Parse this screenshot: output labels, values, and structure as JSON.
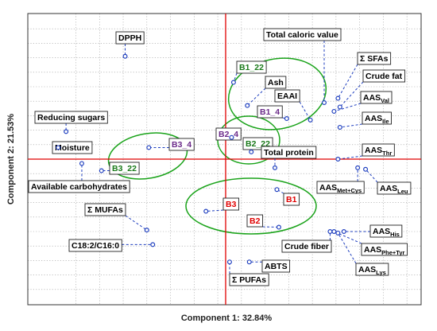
{
  "chart_data": {
    "type": "scatter",
    "title": "",
    "xlabel": "Component 1: 32.84%",
    "ylabel": "Component 2: 21.53%",
    "xlim": [
      -1.0,
      1.0
    ],
    "ylim": [
      -1.0,
      1.0
    ],
    "grid": true,
    "colors": {
      "points": "#1f3fbf",
      "axes_lines": "#e00000",
      "ellipses": "#1aa31a",
      "label_text": "#000000",
      "label_purple": "#6b2a8a",
      "label_green": "#1a7a1a",
      "label_red": "#e00000"
    },
    "points": [
      {
        "label": "DPPH",
        "x": -0.51,
        "y": 0.71,
        "color": "black"
      },
      {
        "label": "B1_22",
        "x": 0.04,
        "y": 0.53,
        "color": "green"
      },
      {
        "label": "Total caloric value",
        "x": 0.5,
        "y": 0.39,
        "color": "black"
      },
      {
        "label": "Σ SFAs",
        "x": 0.57,
        "y": 0.42,
        "color": "black"
      },
      {
        "label": "Ash",
        "x": 0.11,
        "y": 0.37,
        "color": "black"
      },
      {
        "label": "Crude fat",
        "x": 0.58,
        "y": 0.36,
        "color": "black"
      },
      {
        "label": "EAAI",
        "x": 0.43,
        "y": 0.27,
        "color": "black"
      },
      {
        "label": "AAS",
        "sub": "Val",
        "x": 0.55,
        "y": 0.33,
        "color": "black"
      },
      {
        "label": "B1_4",
        "x": 0.31,
        "y": 0.28,
        "color": "purple"
      },
      {
        "label": "AAS",
        "sub": "Ile",
        "x": 0.58,
        "y": 0.22,
        "color": "black"
      },
      {
        "label": "Reducing sugars",
        "x": -0.81,
        "y": 0.19,
        "color": "black"
      },
      {
        "label": "Moisture",
        "x": -0.85,
        "y": 0.08,
        "color": "black"
      },
      {
        "label": "B3_4",
        "x": -0.39,
        "y": 0.08,
        "color": "purple"
      },
      {
        "label": "B2_4",
        "x": 0.03,
        "y": 0.15,
        "color": "purple"
      },
      {
        "label": "B2_22",
        "x": 0.13,
        "y": 0.05,
        "color": "green"
      },
      {
        "label": "Total protein",
        "x": 0.25,
        "y": -0.06,
        "color": "black"
      },
      {
        "label": "AAS",
        "sub": "Thr",
        "x": 0.57,
        "y": 0.0,
        "color": "black"
      },
      {
        "label": "Available carbohydrates",
        "x": -0.73,
        "y": -0.03,
        "color": "black"
      },
      {
        "label": "B3_22",
        "x": -0.63,
        "y": -0.08,
        "color": "green"
      },
      {
        "label": "AAS",
        "sub": "Met+Cys",
        "x": 0.67,
        "y": -0.06,
        "color": "black"
      },
      {
        "label": "AAS",
        "sub": "Leu",
        "x": 0.71,
        "y": -0.07,
        "color": "black"
      },
      {
        "label": "B1",
        "x": 0.26,
        "y": -0.21,
        "color": "red"
      },
      {
        "label": "B3",
        "x": -0.1,
        "y": -0.36,
        "color": "red"
      },
      {
        "label": "Σ MUFAs",
        "x": -0.4,
        "y": -0.49,
        "color": "black"
      },
      {
        "label": "B2",
        "x": 0.27,
        "y": -0.47,
        "color": "red"
      },
      {
        "label": "C18:2/C16:0",
        "x": -0.37,
        "y": -0.59,
        "color": "black"
      },
      {
        "label": "Crude fiber",
        "x": 0.53,
        "y": -0.5,
        "color": "black"
      },
      {
        "label": "AAS",
        "sub": "His",
        "x": 0.6,
        "y": -0.5,
        "color": "black"
      },
      {
        "label": "AAS",
        "sub": "Phe+Tyr",
        "x": 0.55,
        "y": -0.5,
        "color": "black"
      },
      {
        "label": "AAS",
        "sub": "Lys",
        "x": 0.57,
        "y": -0.51,
        "color": "black"
      },
      {
        "label": "ABTS",
        "x": 0.12,
        "y": -0.71,
        "color": "black"
      },
      {
        "label": "Σ PUFAs",
        "x": 0.02,
        "y": -0.71,
        "color": "black"
      }
    ]
  }
}
